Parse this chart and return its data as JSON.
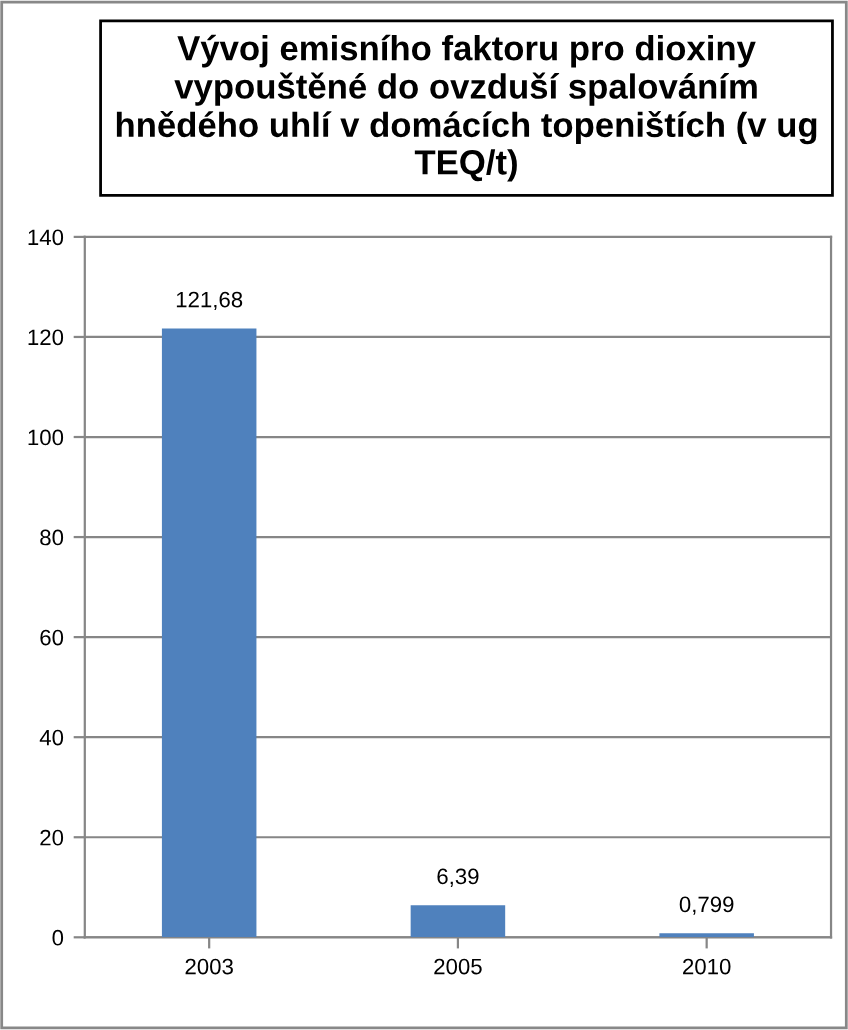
{
  "chart_data": {
    "type": "bar",
    "title": "Vývoj emisního faktoru pro dioxiny vypouštěné do ovzduší spalováním hnědého uhlí v domácích topeništích (v ug TEQ/t)",
    "categories": [
      "2003",
      "2005",
      "2010"
    ],
    "values": [
      121.68,
      6.39,
      0.799
    ],
    "value_labels": [
      "121,68",
      "6,39",
      "0,799"
    ],
    "color": "#4f81bd",
    "ylim": [
      0,
      140
    ],
    "yticks": [
      0,
      20,
      40,
      60,
      80,
      100,
      120,
      140
    ],
    "grid": "y",
    "legend": false
  }
}
